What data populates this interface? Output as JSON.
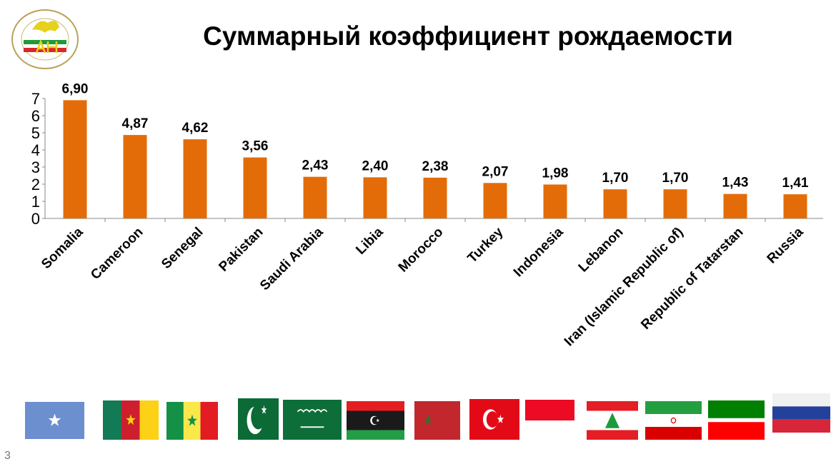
{
  "title": "Суммарный коэффициент рождаемости",
  "logo": {
    "top_text": "ФӘННӘР АКАДЕМИЯСЕ",
    "center_text": "АН",
    "bottom_text": "ТАТАРСТАН"
  },
  "page_number": "3",
  "colors": {
    "bar": "#E36C09"
  },
  "chart_data": {
    "type": "bar",
    "title": "Суммарный коэффициент рождаемости",
    "categories": [
      "Somalia",
      "Cameroon",
      "Senegal",
      "Pakistan",
      "Saudi Arabia",
      "Libia",
      "Morocco",
      "Turkey",
      "Indonesia",
      "Lebanon",
      "Iran (Islamic Republic of)",
      "Republic of Tatarstan",
      "Russia"
    ],
    "values": [
      6.9,
      4.87,
      4.62,
      3.56,
      2.43,
      2.4,
      2.38,
      2.07,
      1.98,
      1.7,
      1.7,
      1.43,
      1.41
    ],
    "data_labels": [
      "6,90",
      "4,87",
      "4,62",
      "3,56",
      "2,43",
      "2,40",
      "2,38",
      "2,07",
      "1,98",
      "1,70",
      "1,70",
      "1,43",
      "1,41"
    ],
    "yticks": [
      "0",
      "1",
      "2",
      "3",
      "4",
      "5",
      "6",
      "7"
    ],
    "ylim": [
      0,
      7
    ],
    "xlabel": "",
    "ylabel": "",
    "grid": false,
    "legend": "none"
  },
  "flags": [
    "somalia",
    "cameroon",
    "senegal",
    "pakistan",
    "saudi-arabia",
    "libya",
    "morocco",
    "turkey",
    "indonesia",
    "lebanon",
    "iran",
    "tatarstan",
    "russia"
  ]
}
